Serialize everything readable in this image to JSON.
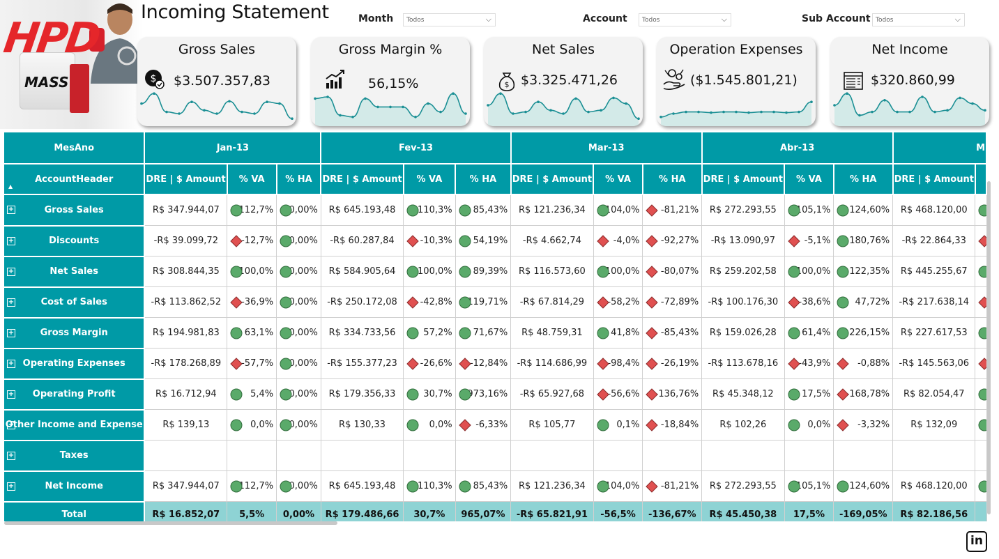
{
  "header": {
    "logo_text": "HPD",
    "product_text": "MASS",
    "title": "Incoming Statement",
    "filters": [
      {
        "label": "Month",
        "value": "Todos"
      },
      {
        "label": "Account",
        "value": "Todos"
      },
      {
        "label": "Sub Account",
        "value": "Todos"
      }
    ]
  },
  "kpis": [
    {
      "title": "Gross Sales",
      "value": "$3.507.357,83",
      "icon": "dollar-check-icon",
      "spark": [
        0.55,
        0.85,
        0.3,
        0.25,
        0.6,
        0.35,
        0.25,
        0.62,
        0.3,
        0.25,
        0.6,
        0.55,
        0.1
      ],
      "spark_fill": false
    },
    {
      "title": "Gross Margin %",
      "value": "56,15%",
      "icon": "growth-chart-icon",
      "spark": [
        0.7,
        0.75,
        0.2,
        0.15,
        0.7,
        0.45,
        0.45,
        0.45,
        0.15,
        0.55,
        0.3,
        0.85,
        0.25
      ],
      "spark_fill": true
    },
    {
      "title": "Net Sales",
      "value": "$3.325.471,26",
      "icon": "money-bag-icon",
      "spark": [
        0.5,
        0.85,
        0.25,
        0.3,
        0.6,
        0.35,
        0.25,
        0.7,
        0.3,
        0.35,
        0.72,
        0.55,
        0.1
      ],
      "spark_fill": true
    },
    {
      "title": "Operation Expenses",
      "value": "($1.545.801,21)",
      "icon": "hand-coins-icon",
      "spark": [
        0.15,
        0.25,
        0.3,
        0.3,
        0.28,
        0.3,
        0.3,
        0.28,
        0.3,
        0.3,
        0.28,
        0.3,
        0.6
      ],
      "spark_fill": true
    },
    {
      "title": "Net Income",
      "value": "$320.860,99",
      "icon": "ledger-icon",
      "spark": [
        0.5,
        0.85,
        0.2,
        0.3,
        0.65,
        0.3,
        0.3,
        0.75,
        0.3,
        0.35,
        0.72,
        0.55,
        0.35
      ],
      "spark_fill": true
    }
  ],
  "table": {
    "corner_top": "MesAno",
    "corner_bottom": "AccountHeader",
    "months": [
      "Jan-13",
      "Fev-13",
      "Mar-13",
      "Abr-13",
      "M"
    ],
    "sub_headers": [
      "DRE | $ Amount",
      "% VA",
      "% HA"
    ],
    "rows": [
      {
        "label": "Gross Sales",
        "cells": [
          [
            "R$ 347.944,07",
            "112,7%",
            "g",
            "0,00%",
            "g"
          ],
          [
            "R$ 645.193,48",
            "110,3%",
            "g",
            "85,43%",
            "g"
          ],
          [
            "R$ 121.236,34",
            "104,0%",
            "g",
            "-81,21%",
            "r"
          ],
          [
            "R$ 272.293,55",
            "105,1%",
            "g",
            "124,60%",
            "g"
          ],
          [
            "R$ 468.120,00",
            "",
            "g",
            "",
            ""
          ]
        ]
      },
      {
        "label": "Discounts",
        "cells": [
          [
            "-R$ 39.099,72",
            "-12,7%",
            "r",
            "0,00%",
            "g"
          ],
          [
            "-R$ 60.287,84",
            "-10,3%",
            "r",
            "54,19%",
            "g"
          ],
          [
            "-R$ 4.662,74",
            "-4,0%",
            "r",
            "-92,27%",
            "r"
          ],
          [
            "-R$ 13.090,97",
            "-5,1%",
            "r",
            "180,76%",
            "g"
          ],
          [
            "-R$ 22.864,33",
            "",
            "r",
            "",
            ""
          ]
        ]
      },
      {
        "label": "Net Sales",
        "cells": [
          [
            "R$ 308.844,35",
            "100,0%",
            "g",
            "0,00%",
            "g"
          ],
          [
            "R$ 584.905,64",
            "100,0%",
            "g",
            "89,39%",
            "g"
          ],
          [
            "R$ 116.573,60",
            "100,0%",
            "g",
            "-80,07%",
            "r"
          ],
          [
            "R$ 259.202,58",
            "100,0%",
            "g",
            "122,35%",
            "g"
          ],
          [
            "R$ 445.255,67",
            "",
            "g",
            "",
            ""
          ]
        ]
      },
      {
        "label": "Cost of Sales",
        "cells": [
          [
            "-R$ 113.862,52",
            "-36,9%",
            "r",
            "0,00%",
            "g"
          ],
          [
            "-R$ 250.172,08",
            "-42,8%",
            "r",
            "119,71%",
            "g"
          ],
          [
            "-R$ 67.814,29",
            "-58,2%",
            "r",
            "-72,89%",
            "r"
          ],
          [
            "-R$ 100.176,30",
            "-38,6%",
            "r",
            "47,72%",
            "g"
          ],
          [
            "-R$ 217.638,14",
            "",
            "r",
            "",
            ""
          ]
        ]
      },
      {
        "label": "Gross Margin",
        "cells": [
          [
            "R$ 194.981,83",
            "63,1%",
            "g",
            "0,00%",
            "g"
          ],
          [
            "R$ 334.733,56",
            "57,2%",
            "g",
            "71,67%",
            "g"
          ],
          [
            "R$ 48.759,31",
            "41,8%",
            "g",
            "-85,43%",
            "r"
          ],
          [
            "R$ 159.026,28",
            "61,4%",
            "g",
            "226,15%",
            "g"
          ],
          [
            "R$ 227.617,53",
            "",
            "g",
            "",
            ""
          ]
        ]
      },
      {
        "label": "Operating Expenses",
        "cells": [
          [
            "-R$ 178.268,89",
            "-57,7%",
            "r",
            "0,00%",
            "g"
          ],
          [
            "-R$ 155.377,23",
            "-26,6%",
            "r",
            "-12,84%",
            "r"
          ],
          [
            "-R$ 114.686,99",
            "-98,4%",
            "r",
            "-26,19%",
            "r"
          ],
          [
            "-R$ 113.678,16",
            "-43,9%",
            "r",
            "-0,88%",
            "r"
          ],
          [
            "-R$ 145.563,06",
            "",
            "r",
            "",
            ""
          ]
        ]
      },
      {
        "label": "Operating Profit",
        "cells": [
          [
            "R$ 16.712,94",
            "5,4%",
            "g",
            "0,00%",
            "g"
          ],
          [
            "R$ 179.356,33",
            "30,7%",
            "g",
            "973,16%",
            "g"
          ],
          [
            "-R$ 65.927,68",
            "-56,6%",
            "r",
            "-136,76%",
            "r"
          ],
          [
            "R$ 45.348,12",
            "17,5%",
            "g",
            "-168,78%",
            "r"
          ],
          [
            "R$ 82.054,47",
            "",
            "g",
            "",
            ""
          ]
        ]
      },
      {
        "label": "Other Income and Expense",
        "cells": [
          [
            "R$ 139,13",
            "0,0%",
            "g",
            "0,00%",
            "g"
          ],
          [
            "R$ 130,33",
            "0,0%",
            "g",
            "-6,33%",
            "r"
          ],
          [
            "R$ 105,77",
            "0,1%",
            "g",
            "-18,84%",
            "r"
          ],
          [
            "R$ 102,26",
            "0,0%",
            "g",
            "-3,32%",
            "r"
          ],
          [
            "R$ 132,09",
            "",
            "g",
            "",
            ""
          ]
        ]
      },
      {
        "label": "Taxes",
        "cells": [
          [
            "",
            "",
            "",
            "",
            ""
          ],
          [
            "",
            "",
            "",
            "",
            ""
          ],
          [
            "",
            "",
            "",
            "",
            ""
          ],
          [
            "",
            "",
            "",
            "",
            ""
          ],
          [
            "",
            "",
            "",
            "",
            ""
          ]
        ]
      },
      {
        "label": "Net Income",
        "cells": [
          [
            "R$ 347.944,07",
            "112,7%",
            "g",
            "0,00%",
            "g"
          ],
          [
            "R$ 645.193,48",
            "110,3%",
            "g",
            "85,43%",
            "g"
          ],
          [
            "R$ 121.236,34",
            "104,0%",
            "g",
            "-81,21%",
            "r"
          ],
          [
            "R$ 272.293,55",
            "105,1%",
            "g",
            "124,60%",
            "g"
          ],
          [
            "R$ 468.120,00",
            "",
            "g",
            "",
            ""
          ]
        ]
      }
    ],
    "total": {
      "label": "Total",
      "cells": [
        [
          "R$ 16.852,07",
          "5,5%",
          "0,00%"
        ],
        [
          "R$ 179.486,66",
          "30,7%",
          "965,07%"
        ],
        [
          "-R$ 65.821,91",
          "-56,5%",
          "-136,67%"
        ],
        [
          "R$ 45.450,38",
          "17,5%",
          "-169,05%"
        ],
        [
          "R$ 82.186,56",
          "",
          ""
        ]
      ]
    }
  },
  "footer": {
    "linkedin_text": "in"
  },
  "colors": {
    "teal": "#009aa6",
    "total_bg": "#8ed3d4",
    "good": "#5aaa6a",
    "bad": "#e05050"
  }
}
